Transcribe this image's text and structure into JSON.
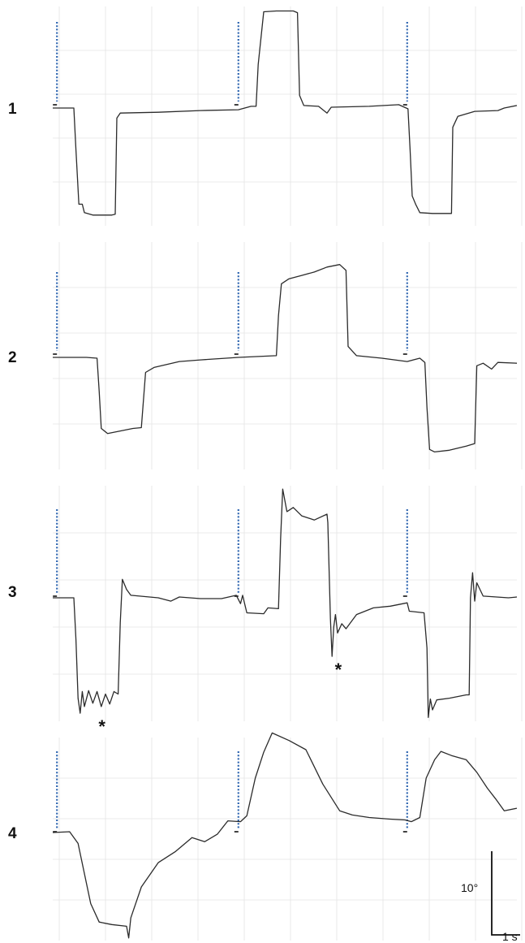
{
  "chart_data": {
    "type": "line",
    "background_color": "#ffffff",
    "trace_color": "#2b2b2b",
    "stimulus_color": "#2f66b0",
    "scale_bars": {
      "vertical_label": "10°",
      "horizontal_label": "1 s"
    },
    "panels": [
      {
        "label": "1",
        "stimulus_times": [
          0.1,
          4.4,
          8.4
        ],
        "asterisks": [],
        "points": [
          [
            0,
            0
          ],
          [
            0.5,
            0
          ],
          [
            0.55,
            -5
          ],
          [
            0.62,
            -11.5
          ],
          [
            0.7,
            -11.5
          ],
          [
            0.75,
            -12.5
          ],
          [
            0.95,
            -12.8
          ],
          [
            1.4,
            -12.8
          ],
          [
            1.48,
            -12.7
          ],
          [
            1.52,
            -1.2
          ],
          [
            1.6,
            -0.6
          ],
          [
            2.5,
            -0.5
          ],
          [
            3.5,
            -0.3
          ],
          [
            4.4,
            -0.2
          ],
          [
            4.7,
            0.2
          ],
          [
            4.82,
            0.2
          ],
          [
            4.87,
            5.2
          ],
          [
            5.0,
            11.5
          ],
          [
            5.3,
            11.6
          ],
          [
            5.7,
            11.6
          ],
          [
            5.8,
            11.4
          ],
          [
            5.85,
            1.5
          ],
          [
            5.95,
            0.3
          ],
          [
            6.3,
            0.2
          ],
          [
            6.5,
            -0.6
          ],
          [
            6.6,
            0.1
          ],
          [
            7.5,
            0.2
          ],
          [
            8.2,
            0.4
          ],
          [
            8.42,
            -0.1
          ],
          [
            8.47,
            -5
          ],
          [
            8.52,
            -10.5
          ],
          [
            8.6,
            -11.5
          ],
          [
            8.7,
            -12.5
          ],
          [
            9.0,
            -12.6
          ],
          [
            9.4,
            -12.6
          ],
          [
            9.45,
            -12.6
          ],
          [
            9.48,
            -2.3
          ],
          [
            9.6,
            -1
          ],
          [
            10.0,
            -0.4
          ],
          [
            10.55,
            -0.3
          ],
          [
            10.7,
            0
          ],
          [
            11.0,
            0.3
          ]
        ]
      },
      {
        "label": "2",
        "stimulus_times": [
          0.1,
          4.4,
          8.4
        ],
        "asterisks": [],
        "points": [
          [
            0,
            0
          ],
          [
            0.8,
            0
          ],
          [
            1.05,
            -0.1
          ],
          [
            1.1,
            -4
          ],
          [
            1.15,
            -8.5
          ],
          [
            1.3,
            -9.1
          ],
          [
            1.6,
            -8.8
          ],
          [
            1.9,
            -8.5
          ],
          [
            2.1,
            -8.4
          ],
          [
            2.2,
            -1.8
          ],
          [
            2.4,
            -1.2
          ],
          [
            3.0,
            -0.5
          ],
          [
            3.5,
            -0.3
          ],
          [
            4.4,
            0
          ],
          [
            5.3,
            0.2
          ],
          [
            5.35,
            5
          ],
          [
            5.42,
            8.8
          ],
          [
            5.6,
            9.4
          ],
          [
            5.9,
            9.8
          ],
          [
            6.2,
            10.2
          ],
          [
            6.5,
            10.8
          ],
          [
            6.8,
            11.1
          ],
          [
            6.95,
            10.4
          ],
          [
            7.0,
            1.3
          ],
          [
            7.2,
            0.2
          ],
          [
            7.8,
            -0.1
          ],
          [
            8.4,
            -0.5
          ],
          [
            8.7,
            -0.1
          ],
          [
            8.82,
            -0.6
          ],
          [
            8.87,
            -6
          ],
          [
            8.93,
            -11
          ],
          [
            9.05,
            -11.3
          ],
          [
            9.4,
            -11.1
          ],
          [
            9.8,
            -10.6
          ],
          [
            10.0,
            -10.3
          ],
          [
            10.05,
            -1
          ],
          [
            10.2,
            -0.7
          ],
          [
            10.4,
            -1.4
          ],
          [
            10.55,
            -0.6
          ],
          [
            11.0,
            -0.7
          ]
        ]
      },
      {
        "label": "3",
        "stimulus_times": [
          0.1,
          4.4,
          8.4
        ],
        "asterisks": [
          1.2,
          6.8
        ],
        "points": [
          [
            0,
            0
          ],
          [
            0.5,
            0
          ],
          [
            0.55,
            -5
          ],
          [
            0.6,
            -12
          ],
          [
            0.65,
            -13.8
          ],
          [
            0.7,
            -11.2
          ],
          [
            0.75,
            -13
          ],
          [
            0.85,
            -11.1
          ],
          [
            0.95,
            -12.6
          ],
          [
            1.05,
            -11.2
          ],
          [
            1.15,
            -13
          ],
          [
            1.25,
            -11.5
          ],
          [
            1.35,
            -12.7
          ],
          [
            1.45,
            -11.2
          ],
          [
            1.55,
            -11.5
          ],
          [
            1.6,
            -3
          ],
          [
            1.65,
            2.2
          ],
          [
            1.75,
            1
          ],
          [
            1.85,
            0.3
          ],
          [
            2.5,
            0
          ],
          [
            2.8,
            -0.4
          ],
          [
            3.0,
            0.1
          ],
          [
            3.5,
            -0.1
          ],
          [
            4.0,
            -0.1
          ],
          [
            4.35,
            0.3
          ],
          [
            4.45,
            -0.7
          ],
          [
            4.5,
            0.3
          ],
          [
            4.6,
            -1.8
          ],
          [
            5.0,
            -1.9
          ],
          [
            5.1,
            -1.2
          ],
          [
            5.35,
            -1.3
          ],
          [
            5.4,
            7
          ],
          [
            5.45,
            13
          ],
          [
            5.55,
            10.3
          ],
          [
            5.7,
            10.8
          ],
          [
            5.9,
            9.8
          ],
          [
            6.2,
            9.3
          ],
          [
            6.5,
            10
          ],
          [
            6.52,
            9
          ],
          [
            6.58,
            -2.5
          ],
          [
            6.62,
            -7
          ],
          [
            6.66,
            -3.5
          ],
          [
            6.7,
            -2
          ],
          [
            6.75,
            -4.2
          ],
          [
            6.85,
            -3.1
          ],
          [
            6.95,
            -3.7
          ],
          [
            7.2,
            -2
          ],
          [
            7.6,
            -1.2
          ],
          [
            8.0,
            -1
          ],
          [
            8.4,
            -0.6
          ],
          [
            8.45,
            -1.6
          ],
          [
            8.8,
            -1.8
          ],
          [
            8.87,
            -6
          ],
          [
            8.9,
            -14.3
          ],
          [
            8.95,
            -12.1
          ],
          [
            9.0,
            -13.4
          ],
          [
            9.1,
            -12.2
          ],
          [
            9.4,
            -12
          ],
          [
            9.8,
            -11.6
          ],
          [
            9.87,
            -11.6
          ],
          [
            9.9,
            0
          ],
          [
            9.95,
            3
          ],
          [
            10.0,
            -0.4
          ],
          [
            10.05,
            1.8
          ],
          [
            10.2,
            0.2
          ],
          [
            10.8,
            0
          ],
          [
            11.0,
            0.1
          ]
        ]
      },
      {
        "label": "4",
        "stimulus_times": [
          0.1,
          4.4,
          8.4
        ],
        "asterisks": [],
        "points": [
          [
            0,
            0
          ],
          [
            0.4,
            0.1
          ],
          [
            0.6,
            -1.3
          ],
          [
            0.9,
            -8.5
          ],
          [
            1.1,
            -10.7
          ],
          [
            1.4,
            -11
          ],
          [
            1.75,
            -11.2
          ],
          [
            1.8,
            -12.6
          ],
          [
            1.85,
            -10.2
          ],
          [
            2.1,
            -6.5
          ],
          [
            2.5,
            -3.6
          ],
          [
            2.9,
            -2.3
          ],
          [
            3.3,
            -0.6
          ],
          [
            3.6,
            -1.1
          ],
          [
            3.9,
            -0.2
          ],
          [
            4.15,
            1.4
          ],
          [
            4.45,
            1.3
          ],
          [
            4.6,
            2
          ],
          [
            4.8,
            6.5
          ],
          [
            5.0,
            9.6
          ],
          [
            5.2,
            11.9
          ],
          [
            5.6,
            11
          ],
          [
            6.0,
            9.9
          ],
          [
            6.4,
            5.8
          ],
          [
            6.8,
            2.6
          ],
          [
            7.1,
            2.1
          ],
          [
            7.5,
            1.8
          ],
          [
            8.0,
            1.6
          ],
          [
            8.35,
            1.5
          ],
          [
            8.5,
            1.3
          ],
          [
            8.7,
            1.8
          ],
          [
            8.85,
            6.5
          ],
          [
            9.05,
            8.7
          ],
          [
            9.2,
            9.7
          ],
          [
            9.45,
            9.2
          ],
          [
            9.8,
            8.7
          ],
          [
            10.05,
            7.2
          ],
          [
            10.3,
            5.3
          ],
          [
            10.5,
            4
          ],
          [
            10.7,
            2.6
          ],
          [
            11.0,
            2.9
          ]
        ]
      }
    ]
  }
}
